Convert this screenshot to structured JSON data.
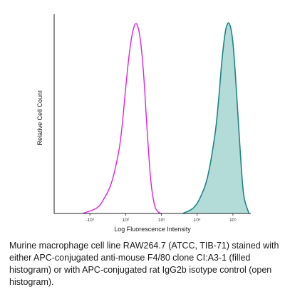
{
  "chart_data": {
    "type": "area",
    "xlabel": "Log Fluorescence Intensity",
    "ylabel": "Relative Cell Count",
    "x_scale": "biexponential",
    "xlim": [
      -2,
      3.5
    ],
    "ylim": [
      0,
      1.05
    ],
    "x_ticks": [
      {
        "value": -1,
        "label": "-10³"
      },
      {
        "value": 0,
        "label": "10²"
      },
      {
        "value": 1,
        "label": "10³"
      },
      {
        "value": 2,
        "label": "10⁴"
      },
      {
        "value": 3,
        "label": "10⁵"
      }
    ],
    "grid": false,
    "series": [
      {
        "style": "open",
        "color": "#e020e0",
        "x": [
          -1.2,
          -0.8,
          -0.6,
          -0.4,
          -0.2,
          -0.1,
          0,
          0.1,
          0.2,
          0.3,
          0.4,
          0.5,
          0.6,
          0.7,
          0.8,
          0.9,
          1.0
        ],
        "y": [
          0.0,
          0.03,
          0.08,
          0.16,
          0.32,
          0.46,
          0.66,
          0.84,
          0.96,
          1.0,
          0.93,
          0.74,
          0.44,
          0.18,
          0.05,
          0.01,
          0.0
        ]
      },
      {
        "style": "filled",
        "color": "#1e8585",
        "fill": "#b3dcd8",
        "x": [
          1.6,
          1.9,
          2.1,
          2.3,
          2.5,
          2.6,
          2.7,
          2.8,
          2.9,
          3.0,
          3.1,
          3.2,
          3.3,
          3.45
        ],
        "y": [
          0.0,
          0.03,
          0.09,
          0.2,
          0.42,
          0.6,
          0.82,
          0.97,
          1.0,
          0.9,
          0.64,
          0.34,
          0.1,
          0.0
        ]
      }
    ]
  },
  "caption": "Murine macrophage cell line RAW264.7 (ATCC, TIB-71) stained with either APC-conjugated anti-mouse F4/80 clone CI:A3-1 (filled histogram) or with APC-conjugated rat IgG2b isotype control (open histogram)."
}
